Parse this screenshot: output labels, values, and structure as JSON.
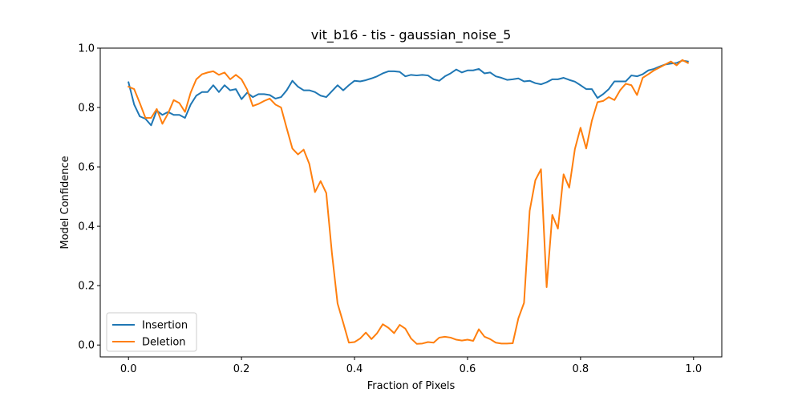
{
  "chart_data": {
    "type": "line",
    "title": "vit_b16 - tis - gaussian_noise_5",
    "xlabel": "Fraction of Pixels",
    "ylabel": "Model Confidence",
    "xlim": [
      -0.05,
      1.05
    ],
    "ylim": [
      -0.04,
      1.0
    ],
    "xticks": [
      0.0,
      0.2,
      0.4,
      0.6,
      0.8,
      1.0
    ],
    "xtick_labels": [
      "0.0",
      "0.2",
      "0.4",
      "0.6",
      "0.8",
      "1.0"
    ],
    "yticks": [
      0.0,
      0.2,
      0.4,
      0.6,
      0.8,
      1.0
    ],
    "ytick_labels": [
      "0.0",
      "0.2",
      "0.4",
      "0.6",
      "0.8",
      "1.0"
    ],
    "grid": false,
    "legend_position": "lower-left",
    "series": [
      {
        "name": "Insertion",
        "color": "#1f77b4",
        "points": [
          [
            0.0,
            0.885
          ],
          [
            0.01,
            0.81
          ],
          [
            0.02,
            0.77
          ],
          [
            0.03,
            0.762
          ],
          [
            0.04,
            0.74
          ],
          [
            0.05,
            0.79
          ],
          [
            0.06,
            0.775
          ],
          [
            0.07,
            0.785
          ],
          [
            0.08,
            0.775
          ],
          [
            0.09,
            0.775
          ],
          [
            0.1,
            0.765
          ],
          [
            0.11,
            0.81
          ],
          [
            0.12,
            0.84
          ],
          [
            0.13,
            0.852
          ],
          [
            0.14,
            0.852
          ],
          [
            0.15,
            0.875
          ],
          [
            0.16,
            0.852
          ],
          [
            0.17,
            0.875
          ],
          [
            0.18,
            0.858
          ],
          [
            0.19,
            0.862
          ],
          [
            0.2,
            0.828
          ],
          [
            0.21,
            0.85
          ],
          [
            0.22,
            0.835
          ],
          [
            0.23,
            0.845
          ],
          [
            0.24,
            0.845
          ],
          [
            0.25,
            0.842
          ],
          [
            0.26,
            0.83
          ],
          [
            0.27,
            0.835
          ],
          [
            0.28,
            0.858
          ],
          [
            0.29,
            0.89
          ],
          [
            0.3,
            0.87
          ],
          [
            0.31,
            0.858
          ],
          [
            0.32,
            0.858
          ],
          [
            0.33,
            0.852
          ],
          [
            0.34,
            0.84
          ],
          [
            0.35,
            0.835
          ],
          [
            0.36,
            0.855
          ],
          [
            0.37,
            0.875
          ],
          [
            0.38,
            0.858
          ],
          [
            0.39,
            0.875
          ],
          [
            0.4,
            0.89
          ],
          [
            0.41,
            0.888
          ],
          [
            0.42,
            0.892
          ],
          [
            0.43,
            0.898
          ],
          [
            0.44,
            0.905
          ],
          [
            0.45,
            0.915
          ],
          [
            0.46,
            0.922
          ],
          [
            0.47,
            0.922
          ],
          [
            0.48,
            0.92
          ],
          [
            0.49,
            0.905
          ],
          [
            0.5,
            0.91
          ],
          [
            0.51,
            0.908
          ],
          [
            0.52,
            0.91
          ],
          [
            0.53,
            0.908
          ],
          [
            0.54,
            0.895
          ],
          [
            0.55,
            0.89
          ],
          [
            0.56,
            0.905
          ],
          [
            0.57,
            0.915
          ],
          [
            0.58,
            0.928
          ],
          [
            0.59,
            0.918
          ],
          [
            0.6,
            0.925
          ],
          [
            0.61,
            0.925
          ],
          [
            0.62,
            0.93
          ],
          [
            0.63,
            0.915
          ],
          [
            0.64,
            0.918
          ],
          [
            0.65,
            0.905
          ],
          [
            0.66,
            0.9
          ],
          [
            0.67,
            0.893
          ],
          [
            0.68,
            0.895
          ],
          [
            0.69,
            0.898
          ],
          [
            0.7,
            0.888
          ],
          [
            0.71,
            0.89
          ],
          [
            0.72,
            0.882
          ],
          [
            0.73,
            0.878
          ],
          [
            0.74,
            0.885
          ],
          [
            0.75,
            0.895
          ],
          [
            0.76,
            0.895
          ],
          [
            0.77,
            0.9
          ],
          [
            0.78,
            0.893
          ],
          [
            0.79,
            0.887
          ],
          [
            0.8,
            0.875
          ],
          [
            0.81,
            0.862
          ],
          [
            0.82,
            0.862
          ],
          [
            0.83,
            0.832
          ],
          [
            0.84,
            0.845
          ],
          [
            0.85,
            0.862
          ],
          [
            0.86,
            0.888
          ],
          [
            0.87,
            0.888
          ],
          [
            0.88,
            0.888
          ],
          [
            0.89,
            0.908
          ],
          [
            0.9,
            0.905
          ],
          [
            0.91,
            0.912
          ],
          [
            0.92,
            0.925
          ],
          [
            0.93,
            0.93
          ],
          [
            0.94,
            0.938
          ],
          [
            0.95,
            0.945
          ],
          [
            0.96,
            0.948
          ],
          [
            0.97,
            0.95
          ],
          [
            0.98,
            0.958
          ],
          [
            0.99,
            0.955
          ]
        ]
      },
      {
        "name": "Deletion",
        "color": "#ff7f0e",
        "points": [
          [
            0.0,
            0.87
          ],
          [
            0.01,
            0.862
          ],
          [
            0.02,
            0.815
          ],
          [
            0.03,
            0.765
          ],
          [
            0.04,
            0.765
          ],
          [
            0.05,
            0.795
          ],
          [
            0.06,
            0.745
          ],
          [
            0.07,
            0.78
          ],
          [
            0.08,
            0.825
          ],
          [
            0.09,
            0.815
          ],
          [
            0.1,
            0.785
          ],
          [
            0.11,
            0.85
          ],
          [
            0.12,
            0.895
          ],
          [
            0.13,
            0.912
          ],
          [
            0.14,
            0.918
          ],
          [
            0.15,
            0.922
          ],
          [
            0.16,
            0.91
          ],
          [
            0.17,
            0.918
          ],
          [
            0.18,
            0.895
          ],
          [
            0.19,
            0.91
          ],
          [
            0.2,
            0.895
          ],
          [
            0.21,
            0.86
          ],
          [
            0.22,
            0.805
          ],
          [
            0.23,
            0.812
          ],
          [
            0.24,
            0.822
          ],
          [
            0.25,
            0.83
          ],
          [
            0.26,
            0.81
          ],
          [
            0.27,
            0.8
          ],
          [
            0.28,
            0.73
          ],
          [
            0.29,
            0.662
          ],
          [
            0.3,
            0.642
          ],
          [
            0.31,
            0.658
          ],
          [
            0.32,
            0.61
          ],
          [
            0.33,
            0.515
          ],
          [
            0.34,
            0.552
          ],
          [
            0.35,
            0.512
          ],
          [
            0.36,
            0.31
          ],
          [
            0.37,
            0.14
          ],
          [
            0.38,
            0.075
          ],
          [
            0.39,
            0.008
          ],
          [
            0.4,
            0.01
          ],
          [
            0.41,
            0.022
          ],
          [
            0.42,
            0.042
          ],
          [
            0.43,
            0.02
          ],
          [
            0.44,
            0.04
          ],
          [
            0.45,
            0.07
          ],
          [
            0.46,
            0.058
          ],
          [
            0.47,
            0.04
          ],
          [
            0.48,
            0.068
          ],
          [
            0.49,
            0.055
          ],
          [
            0.5,
            0.022
          ],
          [
            0.51,
            0.004
          ],
          [
            0.52,
            0.005
          ],
          [
            0.53,
            0.01
          ],
          [
            0.54,
            0.008
          ],
          [
            0.55,
            0.025
          ],
          [
            0.56,
            0.028
          ],
          [
            0.57,
            0.025
          ],
          [
            0.58,
            0.018
          ],
          [
            0.59,
            0.015
          ],
          [
            0.6,
            0.018
          ],
          [
            0.61,
            0.014
          ],
          [
            0.62,
            0.053
          ],
          [
            0.63,
            0.028
          ],
          [
            0.64,
            0.02
          ],
          [
            0.65,
            0.008
          ],
          [
            0.66,
            0.005
          ],
          [
            0.67,
            0.005
          ],
          [
            0.68,
            0.006
          ],
          [
            0.69,
            0.09
          ],
          [
            0.7,
            0.142
          ],
          [
            0.71,
            0.452
          ],
          [
            0.72,
            0.555
          ],
          [
            0.73,
            0.592
          ],
          [
            0.74,
            0.195
          ],
          [
            0.75,
            0.438
          ],
          [
            0.76,
            0.392
          ],
          [
            0.77,
            0.575
          ],
          [
            0.78,
            0.53
          ],
          [
            0.79,
            0.66
          ],
          [
            0.8,
            0.732
          ],
          [
            0.81,
            0.662
          ],
          [
            0.82,
            0.755
          ],
          [
            0.83,
            0.818
          ],
          [
            0.84,
            0.822
          ],
          [
            0.85,
            0.835
          ],
          [
            0.86,
            0.825
          ],
          [
            0.87,
            0.858
          ],
          [
            0.88,
            0.88
          ],
          [
            0.89,
            0.875
          ],
          [
            0.9,
            0.842
          ],
          [
            0.91,
            0.9
          ],
          [
            0.92,
            0.912
          ],
          [
            0.93,
            0.925
          ],
          [
            0.94,
            0.935
          ],
          [
            0.95,
            0.945
          ],
          [
            0.96,
            0.955
          ],
          [
            0.97,
            0.942
          ],
          [
            0.98,
            0.96
          ],
          [
            0.99,
            0.95
          ]
        ]
      }
    ]
  }
}
